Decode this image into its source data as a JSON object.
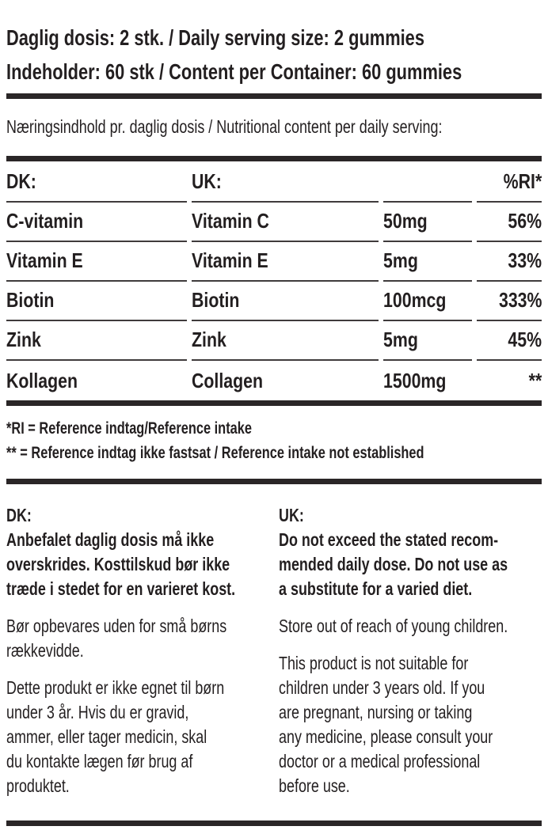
{
  "colors": {
    "text": "#231f20",
    "background": "#ffffff",
    "thick_rule": "#2a2627",
    "thin_line": "#3f3b3c"
  },
  "serving_info": {
    "line1": "Daglig dosis: 2 stk. / Daily serving size: 2 gummies",
    "line2": "Indeholder: 60 stk / Content per Container: 60 gummies"
  },
  "nutrition_heading": "Næringsindhold pr. daglig dosis / Nutritional content per daily serving:",
  "table": {
    "columns": {
      "dk": "DK:",
      "uk": "UK:",
      "amount": "",
      "ri": "%RI*"
    },
    "rows": [
      {
        "dk": "C-vitamin",
        "uk": "Vitamin C",
        "amount": "50mg",
        "ri": "56%"
      },
      {
        "dk": "Vitamin E",
        "uk": "Vitamin E",
        "amount": "5mg",
        "ri": "33%"
      },
      {
        "dk": "Biotin",
        "uk": "Biotin",
        "amount": "100mcg",
        "ri": "333%"
      },
      {
        "dk": "Zink",
        "uk": "Zink",
        "amount": "5mg",
        "ri": "45%"
      },
      {
        "dk": "Kollagen",
        "uk": "Collagen",
        "amount": "1500mg",
        "ri": "**"
      }
    ]
  },
  "footnotes": {
    "line1": "*RI = Reference indtag/Reference intake",
    "line2": "** = Reference indtag ikke fastsat / Reference intake not established"
  },
  "warnings": {
    "dk": {
      "heading": "DK:",
      "bold_text": "Anbefalet daglig dosis må ikke\noverskrides. Kosttilskud bør ikke\ntræde i stedet for en varieret kost.",
      "paragraph1": "Bør opbevares uden for små børns\nrækkevidde.",
      "paragraph2": "Dette produkt er ikke egnet til børn\nunder 3 år. Hvis du er gravid,\nammer, eller tager medicin, skal\ndu kontakte lægen før brug af\nproduktet."
    },
    "uk": {
      "heading": "UK:",
      "bold_text": "Do not exceed the stated recom-\nmended daily dose. Do not use as\na substitute for a varied diet.",
      "paragraph1": "Store out of reach of young children.",
      "paragraph2": "This product is not suitable for\nchildren under 3 years old. If you\nare pregnant, nursing or taking\nany medicine, please consult your\ndoctor or a medical professional\nbefore use."
    }
  }
}
